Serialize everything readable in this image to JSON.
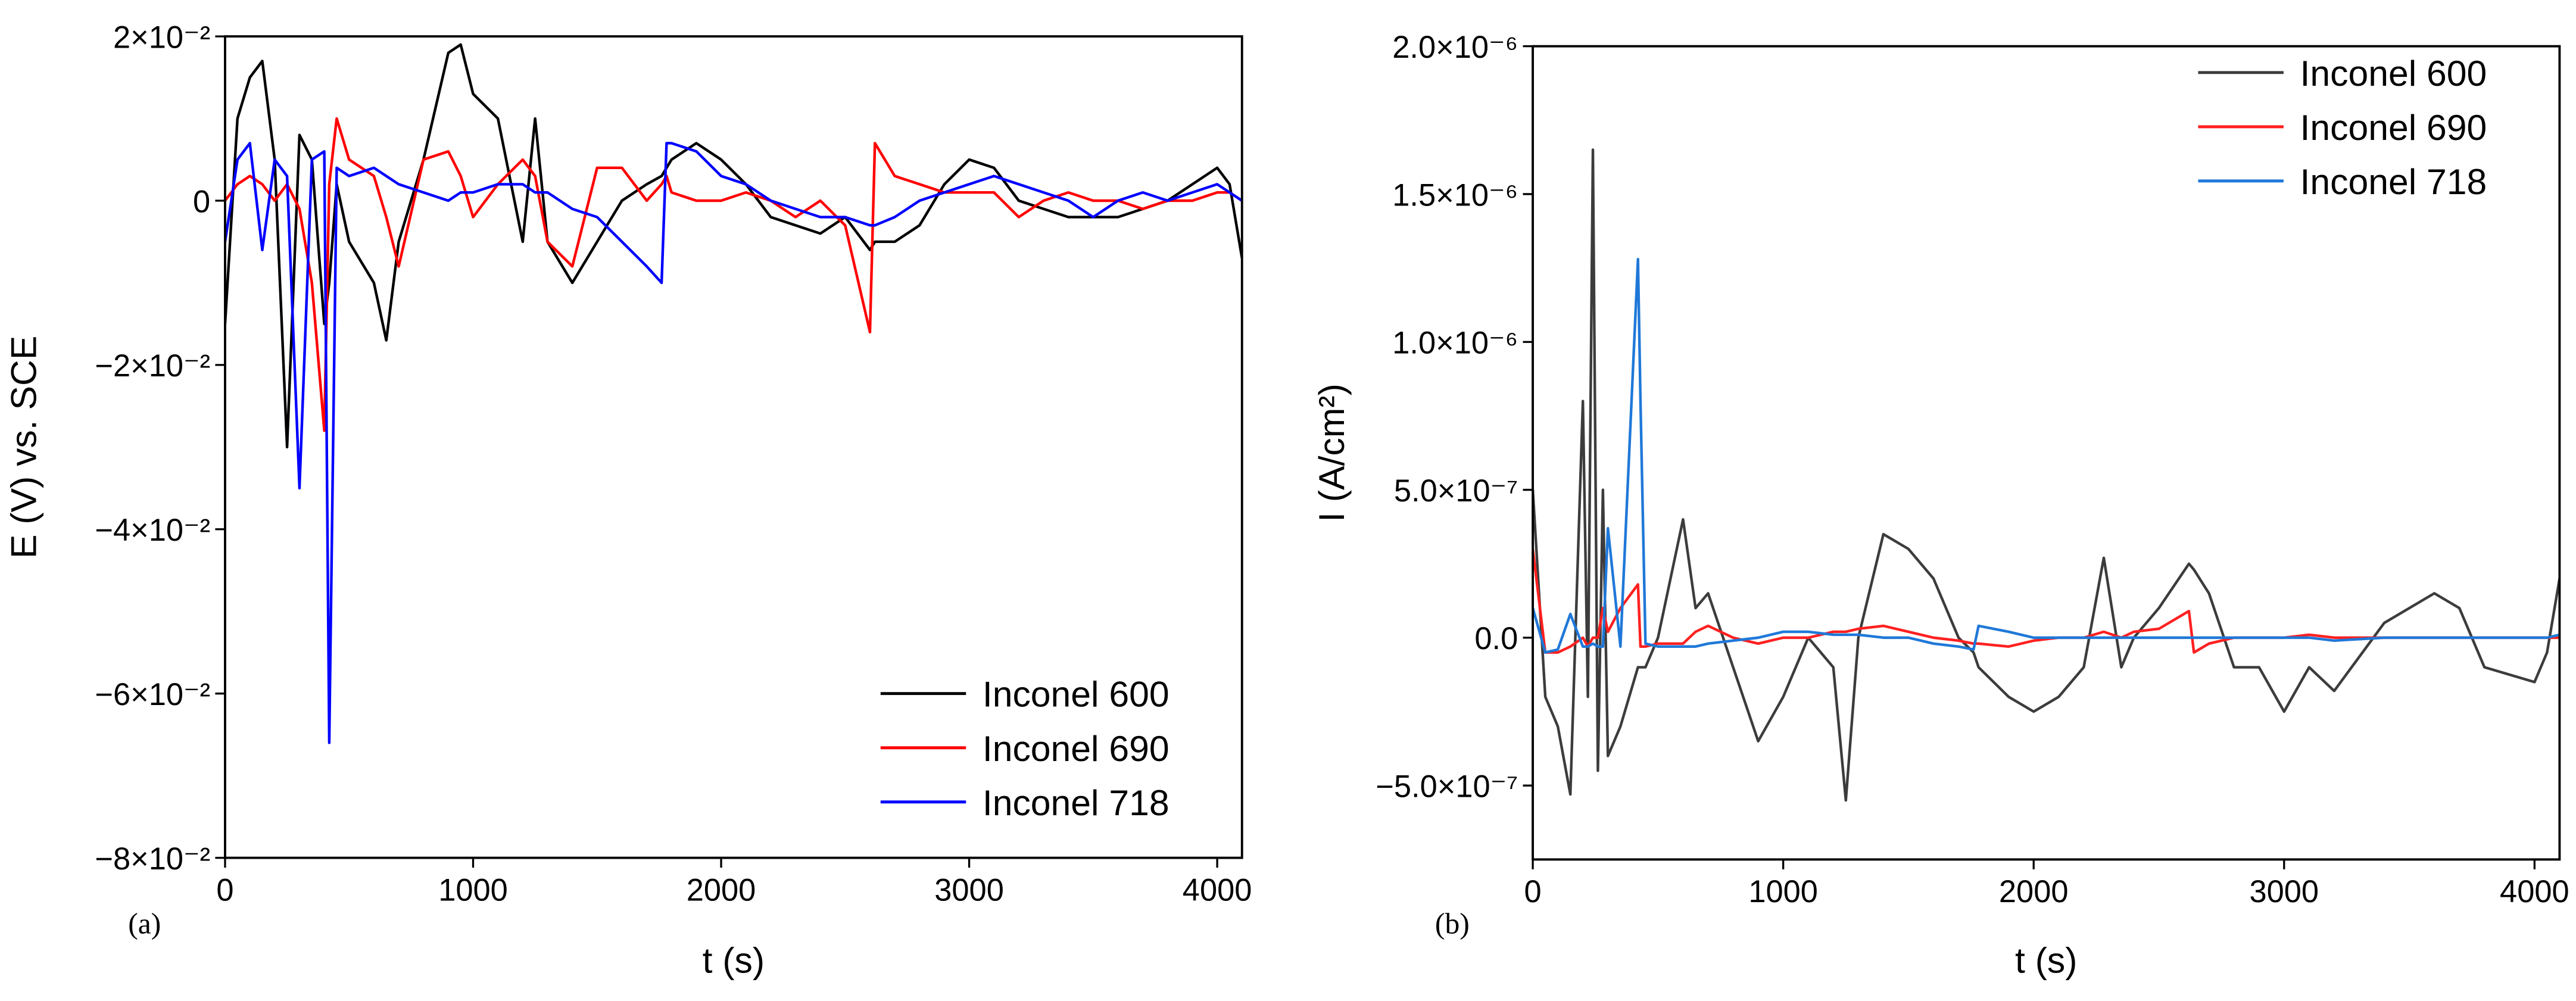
{
  "chart_data": [
    {
      "type": "line",
      "panel_label": "(a)",
      "x_label": "t (s)",
      "y_label": "E (V) vs. SCE",
      "xlim": [
        0,
        4100
      ],
      "xticks": [
        0,
        1000,
        2000,
        3000,
        4000
      ],
      "ylim": [
        -0.08,
        0.02
      ],
      "yticks": [
        {
          "value": -0.08,
          "label": "−8×10⁻²"
        },
        {
          "value": -0.06,
          "label": "−6×10⁻²"
        },
        {
          "value": -0.04,
          "label": "−4×10⁻²"
        },
        {
          "value": -0.02,
          "label": "−2×10⁻²"
        },
        0,
        {
          "value": 0.02,
          "label": "2×10⁻²"
        }
      ],
      "legend": "lower right",
      "grid": false,
      "x": [
        0,
        50,
        100,
        150,
        200,
        250,
        300,
        350,
        400,
        420,
        450,
        500,
        600,
        650,
        700,
        800,
        900,
        950,
        1000,
        1100,
        1200,
        1250,
        1300,
        1400,
        1500,
        1600,
        1700,
        1760,
        1780,
        1800,
        1900,
        2000,
        2100,
        2200,
        2300,
        2400,
        2500,
        2600,
        2620,
        2700,
        2800,
        2900,
        3000,
        3100,
        3200,
        3300,
        3400,
        3500,
        3600,
        3700,
        3800,
        3900,
        4000,
        4050,
        4100
      ],
      "series": [
        {
          "name": "Inconel 600",
          "color": "#000000",
          "values": [
            -0.015,
            0.01,
            0.015,
            0.017,
            0.005,
            -0.03,
            0.008,
            0.005,
            -0.015,
            -0.01,
            0.002,
            -0.005,
            -0.01,
            -0.017,
            -0.005,
            0.005,
            0.018,
            0.019,
            0.013,
            0.01,
            -0.005,
            0.01,
            -0.005,
            -0.01,
            -0.005,
            0,
            0.002,
            0.003,
            0.004,
            0.005,
            0.007,
            0.005,
            0.002,
            -0.002,
            -0.003,
            -0.004,
            -0.002,
            -0.006,
            -0.005,
            -0.005,
            -0.003,
            0.002,
            0.005,
            0.004,
            0,
            -0.001,
            -0.002,
            -0.002,
            -0.002,
            -0.001,
            0,
            0.002,
            0.004,
            0.002,
            -0.007
          ]
        },
        {
          "name": "Inconel 690",
          "color": "#ff0000",
          "values": [
            0,
            0.002,
            0.003,
            0.002,
            0,
            0.002,
            -0.001,
            -0.01,
            -0.028,
            0.002,
            0.01,
            0.005,
            0.003,
            -0.002,
            -0.008,
            0.005,
            0.006,
            0.003,
            -0.002,
            0.002,
            0.005,
            0.003,
            -0.005,
            -0.008,
            0.004,
            0.004,
            0,
            0.002,
            0.003,
            0.001,
            0,
            0,
            0.001,
            0,
            -0.002,
            0,
            -0.003,
            -0.016,
            0.007,
            0.003,
            0.002,
            0.001,
            0.001,
            0.001,
            -0.002,
            0,
            0.001,
            0,
            0,
            -0.001,
            0,
            0,
            0.001,
            0.001,
            0
          ]
        },
        {
          "name": "Inconel 718",
          "color": "#0000ff",
          "values": [
            -0.005,
            0.005,
            0.007,
            -0.006,
            0.005,
            0.003,
            -0.035,
            0.005,
            0.006,
            -0.066,
            0.004,
            0.003,
            0.004,
            0.003,
            0.002,
            0.001,
            0,
            0.001,
            0.001,
            0.002,
            0.002,
            0.001,
            0.001,
            -0.001,
            -0.002,
            -0.005,
            -0.008,
            -0.01,
            0.007,
            0.007,
            0.006,
            0.003,
            0.002,
            0,
            -0.001,
            -0.002,
            -0.002,
            -0.003,
            -0.003,
            -0.002,
            0,
            0.001,
            0.002,
            0.003,
            0.002,
            0.001,
            0,
            -0.002,
            0,
            0.001,
            0,
            0.001,
            0.002,
            0.001,
            0
          ]
        }
      ]
    },
    {
      "type": "line",
      "panel_label": "(b)",
      "x_label": "t (s)",
      "y_label": "I (A/cm²)",
      "xlim": [
        0,
        4100
      ],
      "xticks": [
        0,
        1000,
        2000,
        3000,
        4000
      ],
      "ylim": [
        -7.5e-07,
        2e-06
      ],
      "yticks": [
        {
          "value": -5e-07,
          "label": "−5.0×10⁻⁷"
        },
        {
          "value": 0,
          "label": "0.0"
        },
        {
          "value": 5e-07,
          "label": "5.0×10⁻⁷"
        },
        {
          "value": 1e-06,
          "label": "1.0×10⁻⁶"
        },
        {
          "value": 1.5e-06,
          "label": "1.5×10⁻⁶"
        },
        {
          "value": 2e-06,
          "label": "2.0×10⁻⁶"
        }
      ],
      "legend": "upper right",
      "grid": false,
      "x": [
        0,
        50,
        100,
        150,
        200,
        220,
        240,
        260,
        280,
        300,
        350,
        420,
        430,
        450,
        500,
        600,
        650,
        700,
        800,
        900,
        1000,
        1100,
        1200,
        1250,
        1300,
        1400,
        1500,
        1600,
        1700,
        1760,
        1780,
        1900,
        2000,
        2100,
        2200,
        2280,
        2350,
        2400,
        2500,
        2620,
        2640,
        2700,
        2800,
        2900,
        3000,
        3100,
        3200,
        3400,
        3600,
        3700,
        3800,
        4000,
        4050,
        4100
      ],
      "series": [
        {
          "name": "Inconel 600",
          "color": "#3c3c3c",
          "values": [
            5e-07,
            -2e-07,
            -3e-07,
            -5.3e-07,
            8e-07,
            -2e-07,
            1.65e-06,
            -4.5e-07,
            5e-07,
            -4e-07,
            -3e-07,
            -1e-07,
            -1e-07,
            -1e-07,
            0,
            4e-07,
            1e-07,
            1.5e-07,
            -1e-07,
            -3.5e-07,
            -2e-07,
            0,
            -1e-07,
            -5.5e-07,
            0,
            3.5e-07,
            3e-07,
            2e-07,
            0,
            -5e-08,
            -1e-07,
            -2e-07,
            -2.5e-07,
            -2e-07,
            -1e-07,
            2.7e-07,
            -1e-07,
            0,
            1e-07,
            2.5e-07,
            2.3e-07,
            1.5e-07,
            -1e-07,
            -1e-07,
            -2.5e-07,
            -1e-07,
            -1.8e-07,
            5e-08,
            1.5e-07,
            1e-07,
            -1e-07,
            -1.5e-07,
            -5e-08,
            2e-07
          ]
        },
        {
          "name": "Inconel 690",
          "color": "#ff2020",
          "values": [
            3e-07,
            -5e-08,
            -5e-08,
            -3e-08,
            0,
            -3e-08,
            0,
            0,
            1e-07,
            2e-08,
            1e-07,
            1.8e-07,
            -3e-08,
            -3e-08,
            -2e-08,
            -2e-08,
            2e-08,
            4e-08,
            0,
            -2e-08,
            0,
            0,
            2e-08,
            2e-08,
            3e-08,
            4e-08,
            2e-08,
            0,
            -1e-08,
            -2e-08,
            -2e-08,
            -3e-08,
            -1e-08,
            0,
            0,
            2e-08,
            0,
            2e-08,
            3e-08,
            9e-08,
            -5e-08,
            -2e-08,
            0,
            0,
            0,
            1e-08,
            0,
            0,
            0,
            0,
            0,
            0,
            0,
            0
          ]
        },
        {
          "name": "Inconel 718",
          "color": "#1f78d8",
          "values": [
            1e-07,
            -5e-08,
            -4e-08,
            8e-08,
            -3e-08,
            -3e-08,
            -2e-08,
            -3e-08,
            -3e-08,
            3.7e-07,
            -3e-08,
            1.28e-06,
            8e-07,
            -2e-08,
            -3e-08,
            -3e-08,
            -3e-08,
            -2e-08,
            -1e-08,
            0,
            2e-08,
            2e-08,
            1e-08,
            1e-08,
            1e-08,
            0,
            0,
            -2e-08,
            -3e-08,
            -4e-08,
            4e-08,
            2e-08,
            0,
            0,
            0,
            0,
            0,
            0,
            0,
            0,
            0,
            0,
            0,
            0,
            0,
            0,
            -1e-08,
            0,
            0,
            0,
            0,
            0,
            0,
            1e-08
          ]
        }
      ]
    }
  ]
}
